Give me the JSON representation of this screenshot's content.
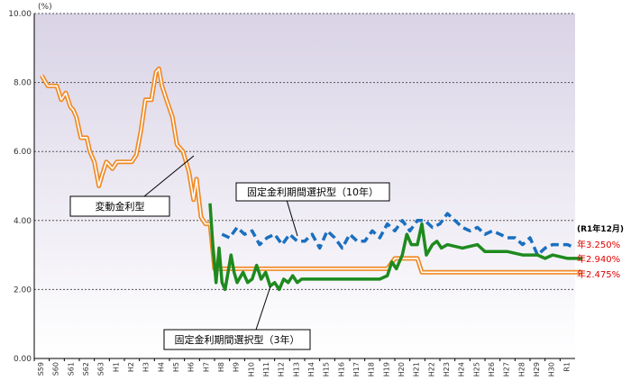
{
  "chart_data": {
    "type": "line",
    "unit_label": "(%)",
    "ylim": [
      0,
      10
    ],
    "yticks": [
      "0.00",
      "2.00",
      "4.00",
      "6.00",
      "8.00",
      "10.00"
    ],
    "x_categories": [
      "S59",
      "S60",
      "S61",
      "S62",
      "S63",
      "H1",
      "H2",
      "H3",
      "H4",
      "H5",
      "H6",
      "H7",
      "H8",
      "H9",
      "H10",
      "H11",
      "H12",
      "H13",
      "H14",
      "H15",
      "H16",
      "H17",
      "H18",
      "H19",
      "H20",
      "H21",
      "H22",
      "H23",
      "H24",
      "H25",
      "H26",
      "H27",
      "H28",
      "H29",
      "H30",
      "R1"
    ],
    "grid": true,
    "annotations": {
      "variable": "変動金利型",
      "fixed10": "固定金利期間選択型（10年）",
      "fixed3": "固定金利期間選択型（3年）"
    },
    "end_labels": {
      "header": "(R1年12月)",
      "fixed10": "年3.250%",
      "fixed3": "年2.940%",
      "variable": "年2.475%"
    },
    "series": [
      {
        "name": "変動金利型",
        "color": "#f08a24",
        "points": [
          [
            0,
            8.2
          ],
          [
            0.4,
            7.9
          ],
          [
            1.0,
            7.9
          ],
          [
            1.3,
            7.5
          ],
          [
            1.6,
            7.7
          ],
          [
            1.9,
            7.3
          ],
          [
            2.1,
            7.2
          ],
          [
            2.3,
            7.0
          ],
          [
            2.6,
            6.4
          ],
          [
            3.0,
            6.4
          ],
          [
            3.2,
            6.0
          ],
          [
            3.5,
            5.7
          ],
          [
            3.8,
            5.0
          ],
          [
            4.0,
            5.3
          ],
          [
            4.3,
            5.7
          ],
          [
            4.7,
            5.5
          ],
          [
            5.0,
            5.7
          ],
          [
            5.3,
            5.7
          ],
          [
            5.6,
            5.7
          ],
          [
            6.0,
            5.7
          ],
          [
            6.3,
            5.9
          ],
          [
            6.6,
            6.6
          ],
          [
            6.9,
            7.5
          ],
          [
            7.3,
            7.5
          ],
          [
            7.6,
            8.3
          ],
          [
            7.8,
            8.4
          ],
          [
            8.0,
            7.9
          ],
          [
            8.3,
            7.5
          ],
          [
            8.7,
            7.0
          ],
          [
            9.0,
            6.2
          ],
          [
            9.4,
            6.0
          ],
          [
            9.8,
            5.4
          ],
          [
            10.1,
            4.6
          ],
          [
            10.3,
            5.2
          ],
          [
            10.6,
            4.1
          ],
          [
            10.9,
            3.9
          ],
          [
            11.2,
            3.9
          ],
          [
            11.5,
            2.6
          ],
          [
            12.2,
            2.6
          ],
          [
            12.6,
            2.6
          ],
          [
            13.0,
            2.6
          ],
          [
            16.0,
            2.6
          ],
          [
            16.5,
            2.6
          ],
          [
            23.0,
            2.6
          ],
          [
            23.5,
            2.9
          ],
          [
            25.0,
            2.9
          ],
          [
            25.3,
            2.5
          ],
          [
            35.0,
            2.5
          ],
          [
            36.0,
            2.5
          ]
        ]
      },
      {
        "name": "固定金利期間選択型（10年）",
        "color": "#1a6fc0",
        "points": [
          [
            12.0,
            3.6
          ],
          [
            12.5,
            3.5
          ],
          [
            13.0,
            3.8
          ],
          [
            13.5,
            3.6
          ],
          [
            14.0,
            3.7
          ],
          [
            14.5,
            3.3
          ],
          [
            15.0,
            3.5
          ],
          [
            15.5,
            3.6
          ],
          [
            16.0,
            3.3
          ],
          [
            16.5,
            3.6
          ],
          [
            17.0,
            3.4
          ],
          [
            17.5,
            3.4
          ],
          [
            18.0,
            3.6
          ],
          [
            18.5,
            3.2
          ],
          [
            19.0,
            3.7
          ],
          [
            19.5,
            3.5
          ],
          [
            20.0,
            3.2
          ],
          [
            20.5,
            3.6
          ],
          [
            21.0,
            3.4
          ],
          [
            21.5,
            3.4
          ],
          [
            22.0,
            3.7
          ],
          [
            22.5,
            3.5
          ],
          [
            23.0,
            3.9
          ],
          [
            23.5,
            3.7
          ],
          [
            24.0,
            4.0
          ],
          [
            24.5,
            3.7
          ],
          [
            25.0,
            4.0
          ],
          [
            25.5,
            4.0
          ],
          [
            26.0,
            3.8
          ],
          [
            26.5,
            3.9
          ],
          [
            27.0,
            4.2
          ],
          [
            27.5,
            4.0
          ],
          [
            28.0,
            3.8
          ],
          [
            28.5,
            3.7
          ],
          [
            29.0,
            3.8
          ],
          [
            29.5,
            3.6
          ],
          [
            30.0,
            3.7
          ],
          [
            30.5,
            3.6
          ],
          [
            31.0,
            3.5
          ],
          [
            31.5,
            3.5
          ],
          [
            32.0,
            3.3
          ],
          [
            32.5,
            3.5
          ],
          [
            33.0,
            3.0
          ],
          [
            33.5,
            3.2
          ],
          [
            34.0,
            3.3
          ],
          [
            34.5,
            3.3
          ],
          [
            35.0,
            3.3
          ],
          [
            35.5,
            3.2
          ]
        ]
      },
      {
        "name": "固定金利期間選択型（3年）",
        "color": "#1e8a1e",
        "points": [
          [
            11.2,
            4.5
          ],
          [
            11.4,
            3.2
          ],
          [
            11.6,
            2.2
          ],
          [
            11.8,
            3.2
          ],
          [
            12.0,
            2.2
          ],
          [
            12.2,
            2.0
          ],
          [
            12.4,
            2.5
          ],
          [
            12.6,
            3.0
          ],
          [
            12.8,
            2.5
          ],
          [
            13.0,
            2.2
          ],
          [
            13.4,
            2.5
          ],
          [
            13.7,
            2.2
          ],
          [
            14.0,
            2.3
          ],
          [
            14.3,
            2.7
          ],
          [
            14.6,
            2.3
          ],
          [
            14.9,
            2.5
          ],
          [
            15.2,
            2.1
          ],
          [
            15.5,
            2.2
          ],
          [
            15.8,
            2.0
          ],
          [
            16.1,
            2.3
          ],
          [
            16.4,
            2.2
          ],
          [
            16.7,
            2.4
          ],
          [
            17.0,
            2.2
          ],
          [
            17.3,
            2.3
          ],
          [
            20.0,
            2.3
          ],
          [
            22.5,
            2.3
          ],
          [
            23.0,
            2.4
          ],
          [
            23.3,
            2.8
          ],
          [
            23.6,
            2.6
          ],
          [
            24.0,
            3.0
          ],
          [
            24.3,
            3.6
          ],
          [
            24.6,
            3.3
          ],
          [
            25.0,
            3.3
          ],
          [
            25.3,
            3.9
          ],
          [
            25.6,
            3.0
          ],
          [
            26.0,
            3.3
          ],
          [
            26.3,
            3.4
          ],
          [
            26.6,
            3.2
          ],
          [
            27.0,
            3.3
          ],
          [
            28.0,
            3.2
          ],
          [
            29.0,
            3.3
          ],
          [
            29.5,
            3.1
          ],
          [
            30.0,
            3.1
          ],
          [
            31.0,
            3.1
          ],
          [
            32.0,
            3.0
          ],
          [
            33.0,
            3.0
          ],
          [
            33.5,
            2.9
          ],
          [
            34.0,
            3.0
          ],
          [
            35.0,
            2.9
          ],
          [
            36.0,
            2.9
          ]
        ]
      }
    ]
  }
}
